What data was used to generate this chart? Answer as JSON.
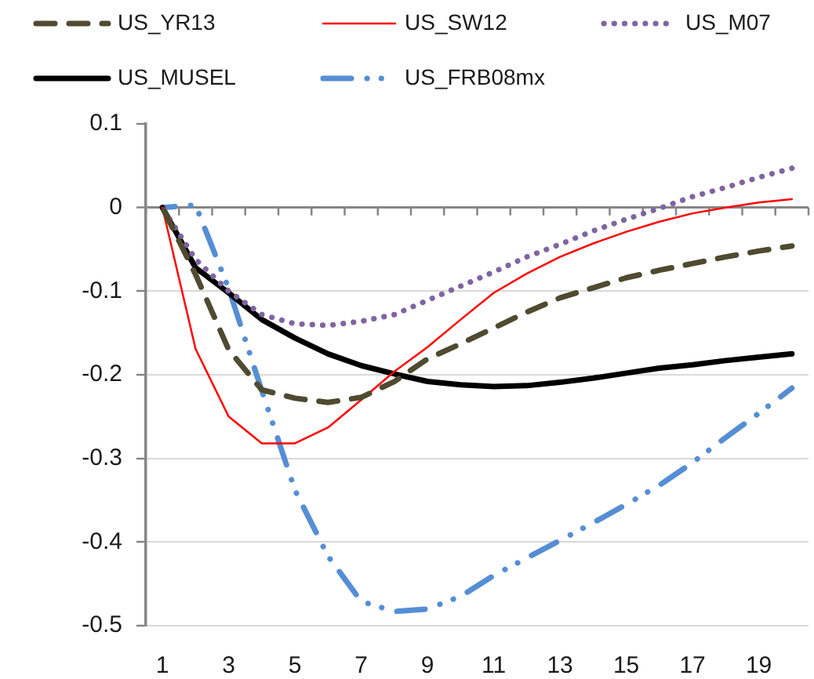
{
  "chart_data": {
    "type": "line",
    "x": [
      1,
      2,
      3,
      4,
      5,
      6,
      7,
      8,
      9,
      10,
      11,
      12,
      13,
      14,
      15,
      16,
      17,
      18,
      19,
      20
    ],
    "xlim": [
      0.5,
      20.5
    ],
    "xticks": [
      1,
      3,
      5,
      7,
      9,
      11,
      13,
      15,
      17,
      19
    ],
    "ylim": [
      -0.5,
      0.1
    ],
    "yticks": [
      0.1,
      0,
      -0.1,
      -0.2,
      -0.3,
      -0.4,
      -0.5
    ],
    "grid": "y",
    "legend": "top",
    "series": [
      {
        "name": "US_YR13",
        "color": "#4f4a30",
        "line_style": "dashed",
        "values": [
          0,
          -0.08,
          -0.17,
          -0.218,
          -0.228,
          -0.233,
          -0.227,
          -0.208,
          -0.181,
          -0.163,
          -0.144,
          -0.125,
          -0.108,
          -0.096,
          -0.084,
          -0.075,
          -0.067,
          -0.059,
          -0.052,
          -0.046
        ]
      },
      {
        "name": "US_SW12",
        "color": "#ff0000",
        "line_style": "solid",
        "values": [
          0,
          -0.169,
          -0.25,
          -0.282,
          -0.282,
          -0.263,
          -0.23,
          -0.196,
          -0.167,
          -0.134,
          -0.102,
          -0.079,
          -0.059,
          -0.043,
          -0.029,
          -0.017,
          -0.007,
          0,
          0.006,
          0.01
        ]
      },
      {
        "name": "US_M07",
        "color": "#8064a2",
        "line_style": "dotted",
        "values": [
          0,
          -0.062,
          -0.1,
          -0.128,
          -0.139,
          -0.141,
          -0.136,
          -0.128,
          -0.111,
          -0.094,
          -0.077,
          -0.059,
          -0.044,
          -0.028,
          -0.014,
          -0.001,
          0.013,
          0.024,
          0.036,
          0.047
        ]
      },
      {
        "name": "US_MUSEL",
        "color": "#000000",
        "line_style": "solid",
        "values": [
          0,
          -0.072,
          -0.102,
          -0.134,
          -0.156,
          -0.175,
          -0.189,
          -0.199,
          -0.208,
          -0.212,
          -0.214,
          -0.213,
          -0.209,
          -0.204,
          -0.198,
          -0.192,
          -0.188,
          -0.183,
          -0.179,
          -0.175
        ]
      },
      {
        "name": "US_FRB08mx",
        "color": "#558ed5",
        "line_style": "dash-dot-dot",
        "values": [
          0,
          0.003,
          -0.097,
          -0.219,
          -0.338,
          -0.417,
          -0.471,
          -0.483,
          -0.48,
          -0.465,
          -0.44,
          -0.419,
          -0.398,
          -0.377,
          -0.355,
          -0.332,
          -0.305,
          -0.275,
          -0.246,
          -0.216
        ]
      }
    ]
  }
}
